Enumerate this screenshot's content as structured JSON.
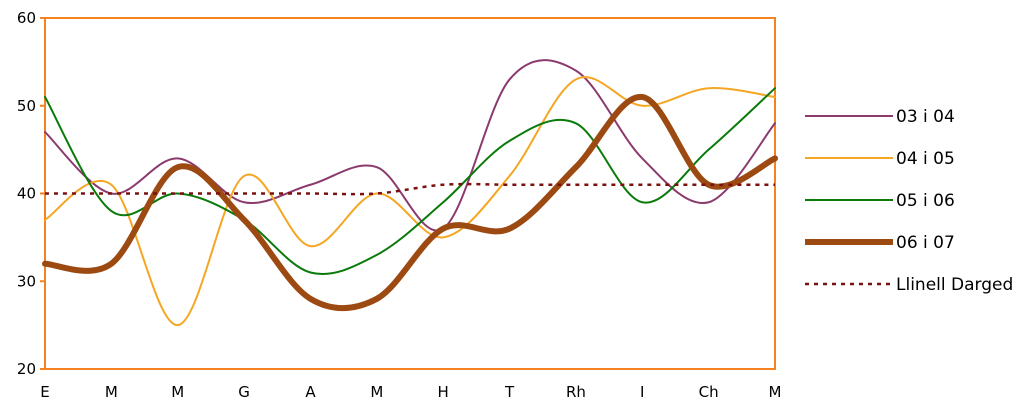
{
  "chart_data": {
    "type": "line",
    "categories": [
      "E",
      "M",
      "M",
      "G",
      "A",
      "M",
      "H",
      "T",
      "Rh",
      "I",
      "Ch",
      "M"
    ],
    "ylim": [
      20,
      60
    ],
    "yticks": [
      20,
      30,
      40,
      50,
      60
    ],
    "grid": false,
    "legend_position": "right",
    "frame_color": "#f58220",
    "series": [
      {
        "name": "03 i 04",
        "color": "#8b3a6e",
        "width": 2,
        "dash": "",
        "values": [
          47,
          40,
          44,
          39,
          41,
          43,
          36,
          53,
          54,
          44,
          39,
          48
        ]
      },
      {
        "name": "04 i 05",
        "color": "#f5a623",
        "width": 2,
        "dash": "",
        "values": [
          37,
          41,
          25,
          42,
          34,
          40,
          35,
          42,
          53,
          50,
          52,
          51
        ]
      },
      {
        "name": "05 i 06",
        "color": "#0a7a0a",
        "width": 2,
        "dash": "",
        "values": [
          51,
          38,
          40,
          37,
          31,
          33,
          39,
          46,
          48,
          39,
          45,
          52
        ]
      },
      {
        "name": "06 i 07",
        "color": "#9c4a12",
        "width": 6,
        "dash": "",
        "values": [
          32,
          32,
          43,
          37,
          28,
          28,
          36,
          36,
          43,
          51,
          41,
          44
        ]
      },
      {
        "name": "Llinell Darged",
        "color": "#7a1010",
        "width": 2.5,
        "dash": "4,5",
        "values": [
          40,
          40,
          40,
          40,
          40,
          40,
          41,
          41,
          41,
          41,
          41,
          41
        ]
      }
    ]
  }
}
